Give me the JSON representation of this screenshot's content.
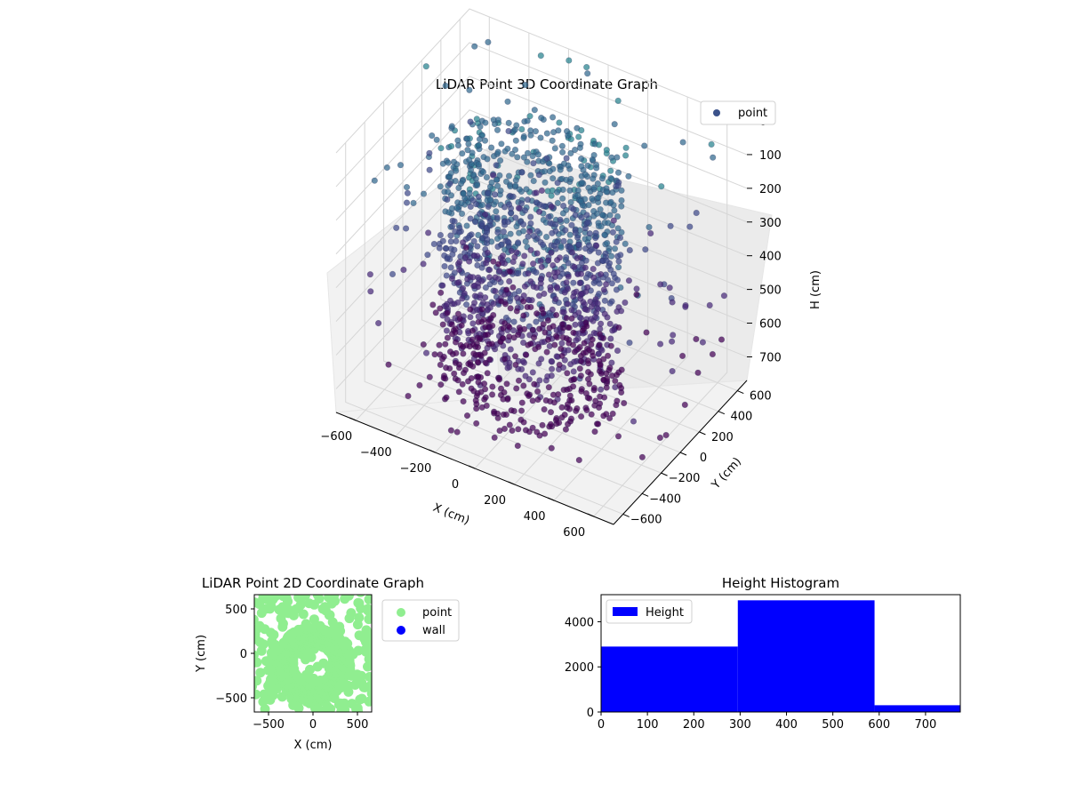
{
  "chart_data": [
    {
      "type": "scatter",
      "projection": "3d",
      "title": "LiDAR Point 3D Coordinate Graph",
      "xlabel": "X (cm)",
      "ylabel": "Y (cm)",
      "zlabel": "H (cm)",
      "xlim": [
        -700,
        700
      ],
      "ylim": [
        -700,
        700
      ],
      "zlim": [
        0,
        770
      ],
      "z_inverted": true,
      "xticks": [
        -600,
        -400,
        -200,
        0,
        200,
        400,
        600
      ],
      "yticks": [
        -600,
        -400,
        -200,
        0,
        200,
        400,
        600
      ],
      "zticks": [
        0,
        100,
        200,
        300,
        400,
        500,
        600,
        700
      ],
      "colormap": "viridis",
      "grid": true,
      "legend": {
        "position": "upper-right",
        "entries": [
          "point"
        ]
      },
      "series": [
        {
          "name": "point",
          "color": "#3b528b",
          "structure": "stacked rings of points around the origin, radius roughly 250-450 cm, heights 0-770 cm, with sparse outlying points up to +/-700 cm"
        }
      ]
    },
    {
      "type": "scatter",
      "title": "LiDAR Point 2D Coordinate Graph",
      "xlabel": "X (cm)",
      "ylabel": "Y (cm)",
      "xlim": [
        -660,
        660
      ],
      "ylim": [
        -660,
        660
      ],
      "xticks": [
        -500,
        0,
        500
      ],
      "yticks": [
        -500,
        0,
        500
      ],
      "legend": {
        "position": "outside-right",
        "entries": [
          "point",
          "wall"
        ]
      },
      "series": [
        {
          "name": "point",
          "color": "#90ee90"
        },
        {
          "name": "wall",
          "color": "#0000ff",
          "points": []
        }
      ]
    },
    {
      "type": "bar",
      "subtype": "histogram",
      "title": "Height Histogram",
      "xlim": [
        0,
        775
      ],
      "ylim": [
        0,
        5200
      ],
      "xticks": [
        0,
        100,
        200,
        300,
        400,
        500,
        600,
        700
      ],
      "yticks": [
        0,
        2000,
        4000
      ],
      "bins": [
        {
          "x0": 0,
          "x1": 295,
          "count": 2900
        },
        {
          "x0": 295,
          "x1": 590,
          "count": 4950
        },
        {
          "x0": 590,
          "x1": 775,
          "count": 300
        }
      ],
      "legend": {
        "position": "upper-left",
        "entries": [
          "Height"
        ]
      },
      "series": [
        {
          "name": "Height",
          "color": "#0000ff"
        }
      ]
    }
  ]
}
